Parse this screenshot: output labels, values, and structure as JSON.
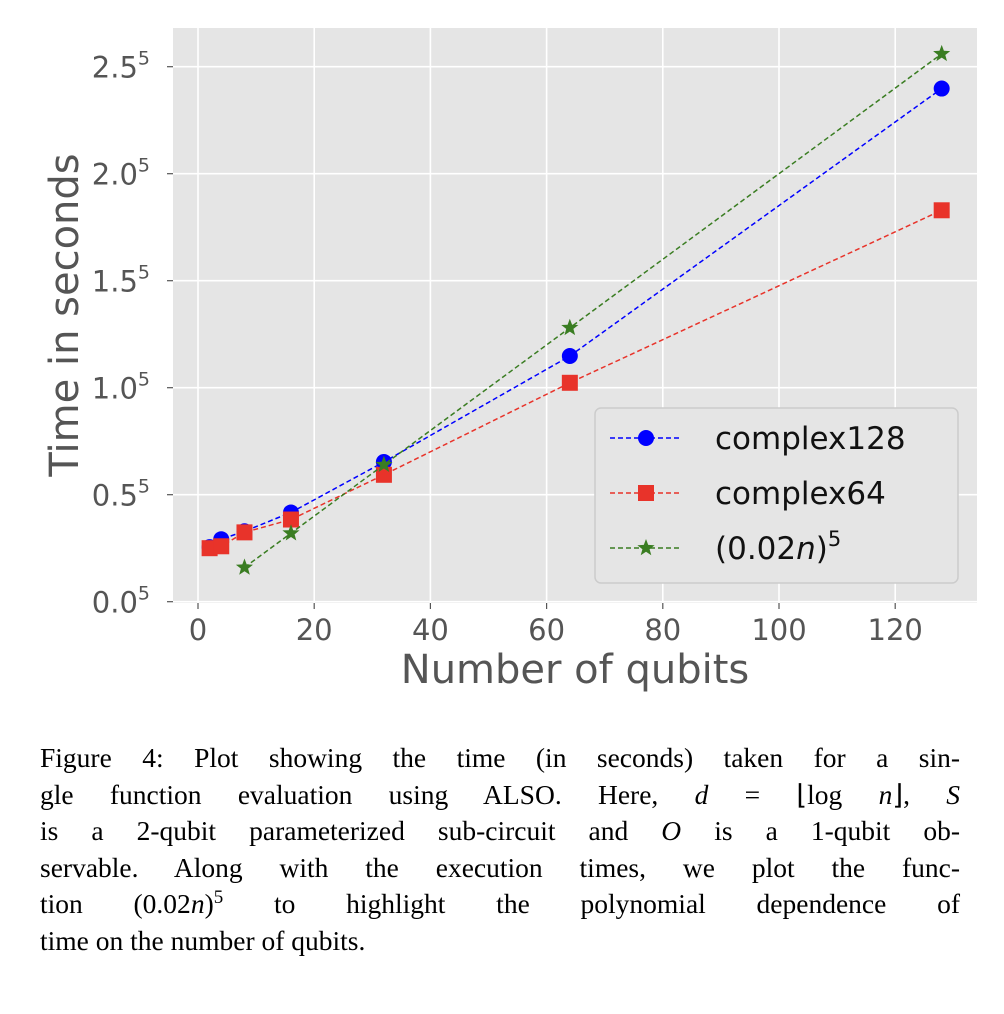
{
  "chart_data": {
    "type": "line",
    "xlabel": "Number of qubits",
    "ylabel": "Time in seconds",
    "x_ticks": [
      "0",
      "20",
      "40",
      "60",
      "80",
      "100",
      "120"
    ],
    "x_tick_values": [
      0,
      20,
      40,
      60,
      80,
      100,
      120
    ],
    "xlim": [
      -4,
      134
    ],
    "y_scale": "fifth-root (ticks at b^5)",
    "y_ticks": [
      {
        "base": "0.0",
        "exp": "5"
      },
      {
        "base": "0.5",
        "exp": "5"
      },
      {
        "base": "1.0",
        "exp": "5"
      },
      {
        "base": "1.5",
        "exp": "5"
      },
      {
        "base": "2.0",
        "exp": "5"
      },
      {
        "base": "2.5",
        "exp": "5"
      }
    ],
    "y_tick_bases": [
      0,
      0.5,
      1.0,
      1.5,
      2.0,
      2.5
    ],
    "grid": true,
    "legend_position": "lower-right",
    "series": [
      {
        "name": "complex128",
        "color": "#0000ff",
        "marker": "circle",
        "style": "dashed",
        "x": [
          2,
          4,
          8,
          16,
          32,
          64,
          128
        ],
        "y": [
          0.001078,
          0.002123,
          0.003855,
          0.01261,
          0.1187,
          1.994,
          79.29
        ]
      },
      {
        "name": "complex64",
        "color": "#e8332a",
        "marker": "square",
        "style": "dashed",
        "x": [
          2,
          4,
          8,
          16,
          32,
          64,
          128
        ],
        "y": [
          0.000977,
          0.001165,
          0.00357,
          0.00835,
          0.07333,
          1.12,
          20.47
        ]
      },
      {
        "name": "(0.02n)^5",
        "legend": {
          "pre": "(0.02",
          "it": "n",
          "post": ")",
          "sup": "5"
        },
        "color": "#3a7d22",
        "marker": "star",
        "style": "dashed",
        "x": [
          8,
          16,
          32,
          64,
          128
        ],
        "y": [
          0.000105,
          0.003355,
          0.1074,
          3.436,
          109.95
        ]
      }
    ]
  },
  "caption": {
    "lines": [
      [
        {
          "t": "Figure 4: Plot showing the time (in seconds) taken for a sin-"
        }
      ],
      [
        {
          "t": "gle function evaluation using ALSO. Here, "
        },
        {
          "t": "d",
          "i": true
        },
        {
          "t": " = ⌊log "
        },
        {
          "t": "n",
          "i": true
        },
        {
          "t": "⌋, "
        },
        {
          "t": "S",
          "i": true
        }
      ],
      [
        {
          "t": "is a 2-qubit parameterized sub-circuit and "
        },
        {
          "t": "O",
          "i": true
        },
        {
          "t": " is a 1-qubit ob-"
        }
      ],
      [
        {
          "t": "servable. Along with the execution times, we plot the func-"
        }
      ],
      [
        {
          "t": "tion (0.02"
        },
        {
          "t": "n",
          "i": true
        },
        {
          "t": ")"
        },
        {
          "t": "5",
          "sup": true
        },
        {
          "t": " to highlight the polynomial dependence of"
        }
      ],
      [
        {
          "t": "time on the number of qubits."
        }
      ]
    ]
  }
}
